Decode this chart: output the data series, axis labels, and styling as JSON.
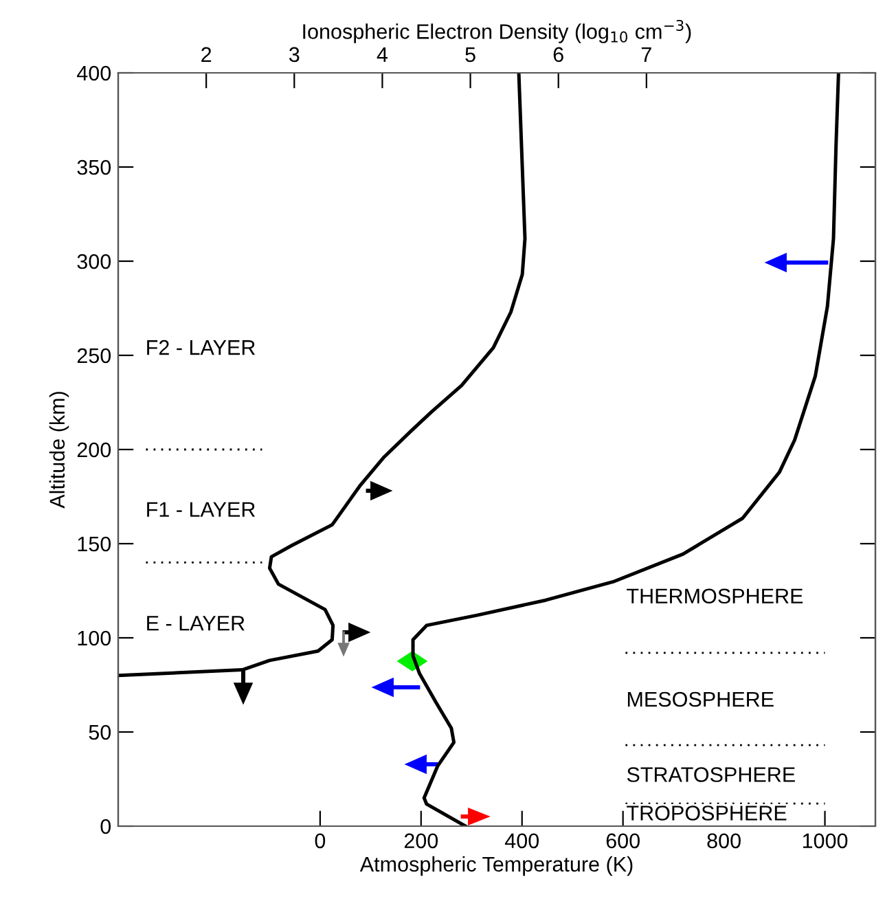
{
  "chart_data": {
    "type": "line",
    "xlabel": "Atmospheric Temperature (K)",
    "ylabel": "Altitude (km)",
    "x2label": "Ionospheric Electron Density (log$_{10}$ cm$^{−3}$)",
    "xlim": [
      -400,
      1100
    ],
    "xticks": [
      0,
      200,
      400,
      600,
      800,
      1000
    ],
    "x2lim": [
      1,
      9.6
    ],
    "x2ticks": [
      2,
      3,
      4,
      5,
      6,
      7
    ],
    "ylim": [
      0,
      400
    ],
    "yticks": [
      0,
      50,
      100,
      150,
      200,
      250,
      300,
      350,
      400
    ],
    "grid": false,
    "legend": false,
    "marker": "none",
    "series": [
      {
        "color": "#000000",
        "line_style": "solid",
        "axis": "x2",
        "x": [
          1.0,
          2.41,
          2.72,
          3.27,
          3.43,
          3.44,
          3.35,
          2.82,
          2.72,
          2.74,
          2.97,
          3.43,
          3.75,
          4.02,
          4.33,
          4.56,
          4.9,
          5.26,
          5.46,
          5.59,
          5.62,
          5.55
        ],
        "values": [
          80,
          83,
          88,
          93,
          99,
          106.6,
          115,
          128.5,
          137,
          143,
          149,
          160,
          181,
          196,
          210,
          220,
          234,
          254,
          273,
          293,
          312,
          400
        ]
      },
      {
        "color": "#000000",
        "line_style": "solid",
        "x": [
          288,
          211,
          206,
          233,
          265,
          260,
          229,
          197,
          184,
          184,
          211,
          311,
          447,
          583,
          719,
          837,
          910,
          940,
          981,
          1005,
          1017,
          1022,
          1027
        ],
        "values": [
          0,
          11.7,
          15,
          32,
          44.5,
          52,
          66,
          81,
          90.5,
          99,
          106.6,
          112,
          120,
          130,
          144.5,
          163.5,
          188,
          205,
          239,
          276,
          312,
          361,
          400
        ]
      },
      {
        "color": "#000000",
        "line_style": "dotted",
        "x": [
          -345,
          -115
        ],
        "values": [
          200,
          200
        ]
      },
      {
        "color": "#000000",
        "line_style": "dotted",
        "x": [
          -345,
          -115
        ],
        "values": [
          140,
          140
        ]
      },
      {
        "color": "#000000",
        "line_style": "dotted",
        "x": [
          605,
          1000
        ],
        "values": [
          92,
          92
        ]
      },
      {
        "color": "#000000",
        "line_style": "dotted",
        "x": [
          605,
          1000
        ],
        "values": [
          43,
          43
        ]
      },
      {
        "color": "#000000",
        "line_style": "dotted",
        "x": [
          605,
          1000
        ],
        "values": [
          12,
          12
        ]
      }
    ],
    "annotations": [
      "F2 - LAYER",
      "F1 - LAYER",
      "E - LAYER",
      "THERMOSPHERE",
      "MESOSPHERE",
      "STRATOSPHERE",
      "TROPOSPHERE"
    ]
  }
}
